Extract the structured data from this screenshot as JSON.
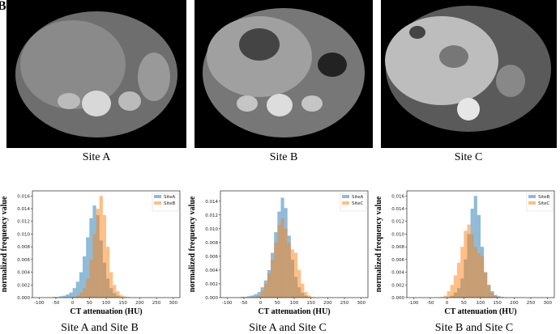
{
  "panel_label": "B",
  "images": [
    {
      "caption": "Site A"
    },
    {
      "caption": "Site B"
    },
    {
      "caption": "Site C"
    }
  ],
  "chart_data": [
    {
      "type": "histogram",
      "caption": "Site A and Site B",
      "xlabel": "CT attenuation (HU)",
      "ylabel": "normalized frequency value",
      "xlim": [
        -120,
        320
      ],
      "xticks": [
        -100,
        -50,
        0,
        50,
        100,
        150,
        200,
        250,
        300
      ],
      "ylim": [
        0,
        0.0168
      ],
      "yticks": [
        {
          "value": 0,
          "label": "0.000"
        },
        {
          "value": 0.002,
          "label": "0.002"
        },
        {
          "value": 0.004,
          "label": "0.004"
        },
        {
          "value": 0.006,
          "label": "0.006"
        },
        {
          "value": 0.008,
          "label": "0.008"
        },
        {
          "value": 0.01,
          "label": "0.010"
        },
        {
          "value": 0.012,
          "label": "0.012"
        },
        {
          "value": 0.014,
          "label": "0.014"
        },
        {
          "value": 0.016,
          "label": "0.016"
        }
      ],
      "bins": [
        -60,
        -50,
        -40,
        -30,
        -20,
        -10,
        0,
        10,
        20,
        30,
        40,
        50,
        60,
        70,
        80,
        90,
        100,
        110,
        120,
        130,
        140,
        150,
        160,
        170,
        180
      ],
      "alpha": 0.5,
      "legend": "upper right",
      "series": [
        {
          "name": "SiteA",
          "color": "#1f77b4",
          "values": [
            0.0001,
            0.0001,
            0.0002,
            0.0003,
            0.0005,
            0.0008,
            0.0015,
            0.0025,
            0.004,
            0.0065,
            0.0095,
            0.0125,
            0.0145,
            0.013,
            0.009,
            0.0055,
            0.003,
            0.0015,
            0.0007,
            0.0003,
            0.0001,
            0,
            0,
            0
          ]
        },
        {
          "name": "SiteB",
          "color": "#ff7f0e",
          "values": [
            0,
            0,
            0,
            0,
            0,
            0,
            0.0001,
            0.0003,
            0.0008,
            0.0015,
            0.003,
            0.006,
            0.01,
            0.014,
            0.016,
            0.013,
            0.008,
            0.004,
            0.002,
            0.001,
            0.0004,
            0.0002,
            0.0001,
            0
          ]
        }
      ]
    },
    {
      "type": "histogram",
      "caption": "Site A and Site C",
      "xlabel": "CT attenuation (HU)",
      "ylabel": "normalized frequency value",
      "xlim": [
        -120,
        320
      ],
      "xticks": [
        -100,
        -50,
        0,
        50,
        100,
        150,
        200,
        250,
        300
      ],
      "ylim": [
        0,
        0.0155
      ],
      "yticks": [
        {
          "value": 0,
          "label": "0.000"
        },
        {
          "value": 0.002,
          "label": "0.002"
        },
        {
          "value": 0.004,
          "label": "0.004"
        },
        {
          "value": 0.006,
          "label": "0.006"
        },
        {
          "value": 0.008,
          "label": "0.008"
        },
        {
          "value": 0.01,
          "label": "0.010"
        },
        {
          "value": 0.012,
          "label": "0.012"
        },
        {
          "value": 0.014,
          "label": "0.014"
        }
      ],
      "bins": [
        -60,
        -50,
        -40,
        -30,
        -20,
        -10,
        0,
        10,
        20,
        30,
        40,
        50,
        60,
        70,
        80,
        90,
        100,
        110,
        120,
        130,
        140,
        150,
        160,
        170,
        180
      ],
      "alpha": 0.5,
      "legend": "upper right",
      "series": [
        {
          "name": "SiteA",
          "color": "#1f77b4",
          "values": [
            0.0001,
            0.0001,
            0.0002,
            0.0003,
            0.0005,
            0.0008,
            0.0015,
            0.0025,
            0.004,
            0.0065,
            0.0095,
            0.0125,
            0.0145,
            0.013,
            0.009,
            0.0055,
            0.003,
            0.0015,
            0.0007,
            0.0003,
            0.0001,
            0,
            0,
            0
          ]
        },
        {
          "name": "SiteC",
          "color": "#ff7f0e",
          "values": [
            0,
            0,
            0,
            0,
            0.0001,
            0.0003,
            0.001,
            0.002,
            0.0035,
            0.0055,
            0.008,
            0.0105,
            0.0115,
            0.01,
            0.008,
            0.007,
            0.0065,
            0.004,
            0.002,
            0.0008,
            0.0003,
            0.0001,
            0,
            0
          ]
        }
      ]
    },
    {
      "type": "histogram",
      "caption": "Site B and Site C",
      "xlabel": "CT attenuation (HU)",
      "ylabel": "normalized frequency value",
      "xlim": [
        -120,
        320
      ],
      "xticks": [
        -100,
        -50,
        0,
        50,
        100,
        150,
        200,
        250,
        300
      ],
      "ylim": [
        0,
        0.0168
      ],
      "yticks": [
        {
          "value": 0,
          "label": "0.000"
        },
        {
          "value": 0.002,
          "label": "0.002"
        },
        {
          "value": 0.004,
          "label": "0.004"
        },
        {
          "value": 0.006,
          "label": "0.006"
        },
        {
          "value": 0.008,
          "label": "0.008"
        },
        {
          "value": 0.01,
          "label": "0.010"
        },
        {
          "value": 0.012,
          "label": "0.012"
        },
        {
          "value": 0.014,
          "label": "0.014"
        },
        {
          "value": 0.016,
          "label": "0.016"
        }
      ],
      "bins": [
        -60,
        -50,
        -40,
        -30,
        -20,
        -10,
        0,
        10,
        20,
        30,
        40,
        50,
        60,
        70,
        80,
        90,
        100,
        110,
        120,
        130,
        140,
        150,
        160,
        170,
        180
      ],
      "alpha": 0.5,
      "legend": "upper right",
      "series": [
        {
          "name": "SiteB",
          "color": "#1f77b4",
          "values": [
            0,
            0,
            0,
            0,
            0,
            0,
            0.0001,
            0.0003,
            0.0008,
            0.0015,
            0.003,
            0.006,
            0.01,
            0.014,
            0.016,
            0.013,
            0.008,
            0.004,
            0.002,
            0.001,
            0.0004,
            0.0002,
            0.0001,
            0
          ]
        },
        {
          "name": "SiteC",
          "color": "#ff7f0e",
          "values": [
            0,
            0,
            0,
            0,
            0.0001,
            0.0003,
            0.001,
            0.002,
            0.0035,
            0.0055,
            0.008,
            0.0105,
            0.0115,
            0.01,
            0.008,
            0.007,
            0.0065,
            0.004,
            0.002,
            0.0008,
            0.0003,
            0.0001,
            0,
            0
          ]
        }
      ]
    }
  ]
}
